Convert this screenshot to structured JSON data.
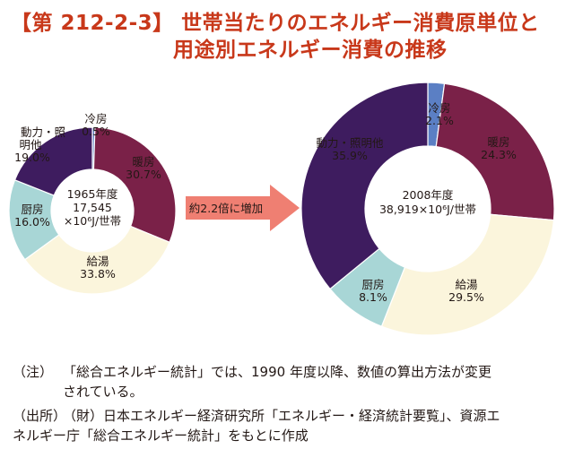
{
  "title": {
    "line1": "【第 212-2-3】 世帯当たりのエネルギー消費原単位と",
    "line2": "用途別エネルギー消費の推移"
  },
  "arrow_label": "約2.2倍に増加",
  "colors": {
    "title": "#c8381a",
    "heating": "#7a2148",
    "hot_water": "#fbf5dc",
    "kitchen": "#a8d6d6",
    "power_lighting": "#3e1c5f",
    "cooling": "#5b7fc4",
    "arrow": "#ef7f72"
  },
  "chart_data": [
    {
      "type": "pie",
      "title": "1965年度",
      "center_lines": [
        "1965年度",
        "17,545",
        "×10⁶J/世帯"
      ],
      "categories": [
        "冷房",
        "暖房",
        "給湯",
        "厨房",
        "動力・照明他"
      ],
      "values": [
        0.5,
        30.7,
        33.8,
        16.0,
        19.0
      ],
      "value_labels": [
        "0.5%",
        "30.7%",
        "33.8%",
        "16.0%",
        "19.0%"
      ],
      "label_texts": [
        "冷房",
        "暖房",
        "給湯",
        "厨房",
        "動力・照"
      ],
      "extra_label": "明他",
      "total": 17545,
      "unit": "×10⁶J/世帯"
    },
    {
      "type": "pie",
      "title": "2008年度",
      "center_lines": [
        "2008年度",
        "38,919×10⁶J/世帯"
      ],
      "categories": [
        "冷房",
        "暖房",
        "給湯",
        "厨房",
        "動力・照明他"
      ],
      "values": [
        2.1,
        24.3,
        29.5,
        8.1,
        35.9
      ],
      "value_labels": [
        "2.1%",
        "24.3%",
        "29.5%",
        "8.1%",
        "35.9%"
      ],
      "label_texts": [
        "冷房",
        "暖房",
        "給湯",
        "厨房",
        "動力・照明他"
      ],
      "total": 38919,
      "unit": "×10⁶J/世帯"
    }
  ],
  "notes": [
    {
      "head": "（注）",
      "lines": [
        "「総合エネルギー統計」では、1990 年度以降、数値の算出方法が変更",
        "されている。"
      ]
    },
    {
      "head": "（出所）",
      "lines": [
        "（財）日本エネルギー経済研究所「エネルギー・経済統計要覧」、資源エ",
        "ネルギー庁「総合エネルギー統計」をもとに作成"
      ]
    }
  ]
}
